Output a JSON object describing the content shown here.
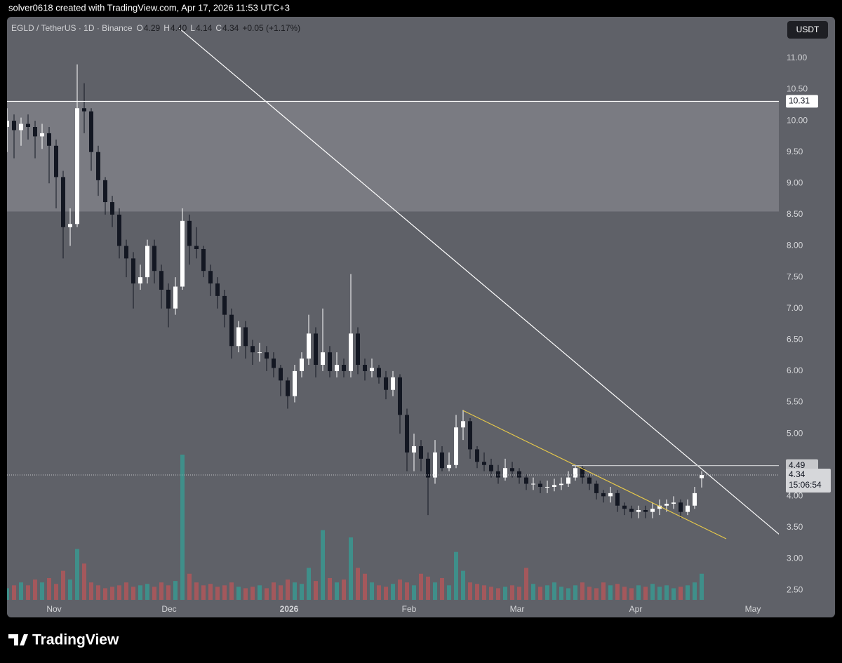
{
  "header": "solver0618 created with TradingView.com, Apr 17, 2026 11:53 UTC+3",
  "footer": "TradingView",
  "chart_data": {
    "type": "candlestick",
    "symbol": "EGLD / TetherUS · 1D · Binance",
    "ohlc_legend": [
      "O",
      "4.29",
      "H",
      "4.40",
      "L",
      "4.14",
      "C",
      "4.34",
      "+0.05 (+1.17%)"
    ],
    "currency": "USDT",
    "open": [
      9.9,
      10.0,
      9.85,
      9.95,
      9.9,
      9.75,
      9.8,
      9.6,
      9.1,
      8.3,
      8.35,
      10.2,
      10.15,
      9.5,
      9.05,
      8.7,
      8.5,
      8.0,
      7.8,
      7.4,
      7.5,
      8.0,
      7.6,
      7.3,
      7.0,
      7.35,
      8.4,
      8.0,
      7.95,
      7.6,
      7.4,
      7.2,
      6.9,
      6.4,
      6.7,
      6.4,
      6.3,
      6.3,
      6.2,
      6.05,
      5.85,
      5.6,
      6.0,
      6.2,
      6.6,
      6.1,
      6.3,
      6.0,
      6.1,
      6.0,
      6.6,
      6.1,
      6.0,
      6.05,
      5.9,
      5.7,
      5.9,
      5.3,
      4.7,
      4.8,
      4.6,
      4.3,
      4.7,
      4.45,
      4.5,
      5.1,
      5.2,
      4.75,
      4.55,
      4.5,
      4.4,
      4.3,
      4.45,
      4.4,
      4.3,
      4.2,
      4.2,
      4.15,
      4.15,
      4.18,
      4.2,
      4.3,
      4.45,
      4.3,
      4.2,
      4.05,
      4.0,
      4.05,
      3.85,
      3.8,
      3.75,
      3.78,
      3.75,
      3.8,
      3.85,
      3.88,
      3.9,
      3.75,
      3.85,
      4.29
    ],
    "high": [
      10.2,
      10.1,
      10.05,
      10.1,
      10.0,
      9.95,
      9.9,
      9.7,
      9.2,
      8.6,
      10.9,
      10.6,
      10.2,
      9.6,
      9.1,
      8.8,
      8.6,
      8.1,
      7.9,
      7.7,
      8.1,
      8.1,
      7.7,
      7.4,
      7.5,
      8.6,
      8.5,
      8.3,
      8.0,
      7.7,
      7.5,
      7.3,
      7.0,
      6.8,
      6.8,
      6.5,
      6.45,
      6.4,
      6.3,
      6.1,
      5.9,
      6.1,
      6.3,
      6.9,
      6.7,
      7.0,
      6.4,
      6.3,
      6.2,
      7.55,
      6.7,
      6.2,
      6.2,
      6.1,
      6.0,
      6.0,
      5.95,
      5.4,
      5.0,
      4.9,
      4.7,
      4.9,
      4.8,
      4.7,
      5.3,
      5.38,
      5.25,
      4.8,
      4.7,
      4.6,
      4.5,
      4.6,
      4.55,
      4.45,
      4.35,
      4.3,
      4.25,
      4.25,
      4.28,
      4.3,
      4.4,
      4.5,
      4.5,
      4.35,
      4.25,
      4.1,
      4.15,
      4.1,
      3.9,
      3.85,
      3.85,
      3.85,
      3.9,
      3.95,
      3.95,
      4.0,
      3.95,
      3.95,
      4.15,
      4.4
    ],
    "low": [
      9.5,
      9.4,
      9.6,
      9.7,
      9.4,
      9.55,
      9.0,
      8.6,
      7.8,
      8.0,
      8.3,
      9.8,
      9.2,
      8.8,
      8.5,
      8.3,
      7.8,
      7.5,
      7.0,
      7.3,
      7.4,
      7.4,
      7.0,
      6.7,
      6.9,
      7.3,
      7.7,
      7.8,
      7.5,
      7.2,
      7.0,
      6.7,
      6.2,
      6.3,
      6.2,
      6.1,
      6.15,
      6.0,
      5.9,
      5.6,
      5.4,
      5.5,
      5.9,
      6.1,
      5.9,
      6.0,
      5.9,
      5.9,
      5.9,
      5.9,
      5.95,
      5.85,
      5.9,
      5.8,
      5.55,
      5.6,
      5.0,
      4.4,
      4.4,
      4.4,
      3.7,
      4.2,
      4.4,
      4.4,
      4.45,
      4.9,
      4.6,
      4.45,
      4.4,
      4.3,
      4.2,
      4.25,
      4.3,
      4.2,
      4.1,
      4.1,
      4.05,
      4.05,
      4.08,
      4.1,
      4.15,
      4.25,
      4.2,
      4.1,
      3.95,
      3.9,
      3.9,
      3.75,
      3.7,
      3.65,
      3.65,
      3.65,
      3.65,
      3.7,
      3.75,
      3.8,
      3.65,
      3.7,
      3.8,
      4.14
    ],
    "close": [
      10.0,
      9.85,
      9.95,
      9.9,
      9.75,
      9.8,
      9.6,
      9.1,
      8.3,
      8.35,
      10.2,
      10.15,
      9.5,
      9.05,
      8.7,
      8.5,
      8.0,
      7.8,
      7.4,
      7.5,
      8.0,
      7.6,
      7.3,
      7.0,
      7.35,
      8.4,
      8.0,
      7.95,
      7.6,
      7.4,
      7.2,
      6.9,
      6.4,
      6.7,
      6.4,
      6.3,
      6.3,
      6.2,
      6.05,
      5.85,
      5.6,
      6.0,
      6.2,
      6.6,
      6.1,
      6.3,
      6.0,
      6.1,
      6.0,
      6.6,
      6.1,
      6.0,
      6.05,
      5.9,
      5.7,
      5.9,
      5.3,
      4.7,
      4.8,
      4.6,
      4.3,
      4.7,
      4.45,
      4.5,
      5.1,
      5.2,
      4.75,
      4.55,
      4.5,
      4.4,
      4.3,
      4.45,
      4.4,
      4.3,
      4.2,
      4.2,
      4.15,
      4.15,
      4.18,
      4.2,
      4.3,
      4.45,
      4.3,
      4.2,
      4.05,
      4.0,
      4.05,
      3.85,
      3.8,
      3.75,
      3.78,
      3.75,
      3.8,
      3.85,
      3.88,
      3.9,
      3.75,
      3.85,
      4.05,
      4.34
    ],
    "volume": [
      8,
      10,
      12,
      10,
      14,
      12,
      15,
      11,
      20,
      14,
      35,
      25,
      12,
      10,
      8,
      9,
      10,
      12,
      9,
      10,
      11,
      9,
      12,
      10,
      13,
      100,
      18,
      12,
      10,
      11,
      9,
      10,
      12,
      9,
      8,
      9,
      10,
      8,
      12,
      10,
      14,
      12,
      11,
      22,
      13,
      48,
      15,
      12,
      14,
      43,
      22,
      18,
      12,
      10,
      9,
      11,
      14,
      12,
      10,
      18,
      16,
      12,
      15,
      10,
      33,
      20,
      12,
      11,
      10,
      9,
      8,
      9,
      10,
      9,
      22,
      11,
      9,
      10,
      12,
      9,
      8,
      10,
      12,
      9,
      8,
      12,
      10,
      11,
      9,
      8,
      10,
      9,
      11,
      9,
      10,
      8,
      9,
      10,
      12,
      18
    ],
    "up_color": "#ffffff",
    "down_color": "#131722",
    "volume_up_color": "#3f8f8a",
    "volume_down_color": "#a4585c",
    "xlim": [
      0,
      110
    ],
    "ylim": [
      2.345,
      11.66
    ],
    "xticks": [
      {
        "value": 6.7,
        "label": "Nov"
      },
      {
        "value": 23.1,
        "label": "Dec"
      },
      {
        "value": 40.2,
        "label": "2026"
      },
      {
        "value": 57.3,
        "label": "Feb"
      },
      {
        "value": 72.7,
        "label": "Mar"
      },
      {
        "value": 89.6,
        "label": "Apr"
      },
      {
        "value": 106.3,
        "label": "May"
      }
    ],
    "yticks": [
      {
        "value": 2.5,
        "label": "2.50"
      },
      {
        "value": 3,
        "label": "3.00"
      },
      {
        "value": 3.5,
        "label": "3.50"
      },
      {
        "value": 4,
        "label": "4.00"
      },
      {
        "value": 4.5,
        "label": "4.50"
      },
      {
        "value": 5,
        "label": "5.00"
      },
      {
        "value": 5.5,
        "label": "5.50"
      },
      {
        "value": 6,
        "label": "6.00"
      },
      {
        "value": 6.5,
        "label": "6.50"
      },
      {
        "value": 7,
        "label": "7.00"
      },
      {
        "value": 7.5,
        "label": "7.50"
      },
      {
        "value": 8,
        "label": "8.00"
      },
      {
        "value": 8.5,
        "label": "8.50"
      },
      {
        "value": 9,
        "label": "9.00"
      },
      {
        "value": 9.5,
        "label": "9.50"
      },
      {
        "value": 10,
        "label": "10.00"
      },
      {
        "value": 10.5,
        "label": "10.50"
      },
      {
        "value": 11,
        "label": "11.00"
      }
    ],
    "zone": [
      8.55,
      10.31
    ],
    "price_lines": [
      {
        "value": 10.31,
        "start": 0,
        "color": "#ffffff"
      },
      {
        "value": 4.49,
        "start": 80.5,
        "color": "#c8c9cc"
      }
    ],
    "last_price": {
      "value": 4.34,
      "countdown": "15:06:54"
    },
    "trendlines": [
      {
        "color": "#ffffff",
        "points": [
          [
            24.5,
            11.48
          ],
          [
            110.8,
            3.32
          ]
        ]
      },
      {
        "color": "#e6c84a",
        "points": [
          [
            65,
            5.37
          ],
          [
            102.5,
            3.32
          ]
        ]
      }
    ]
  }
}
